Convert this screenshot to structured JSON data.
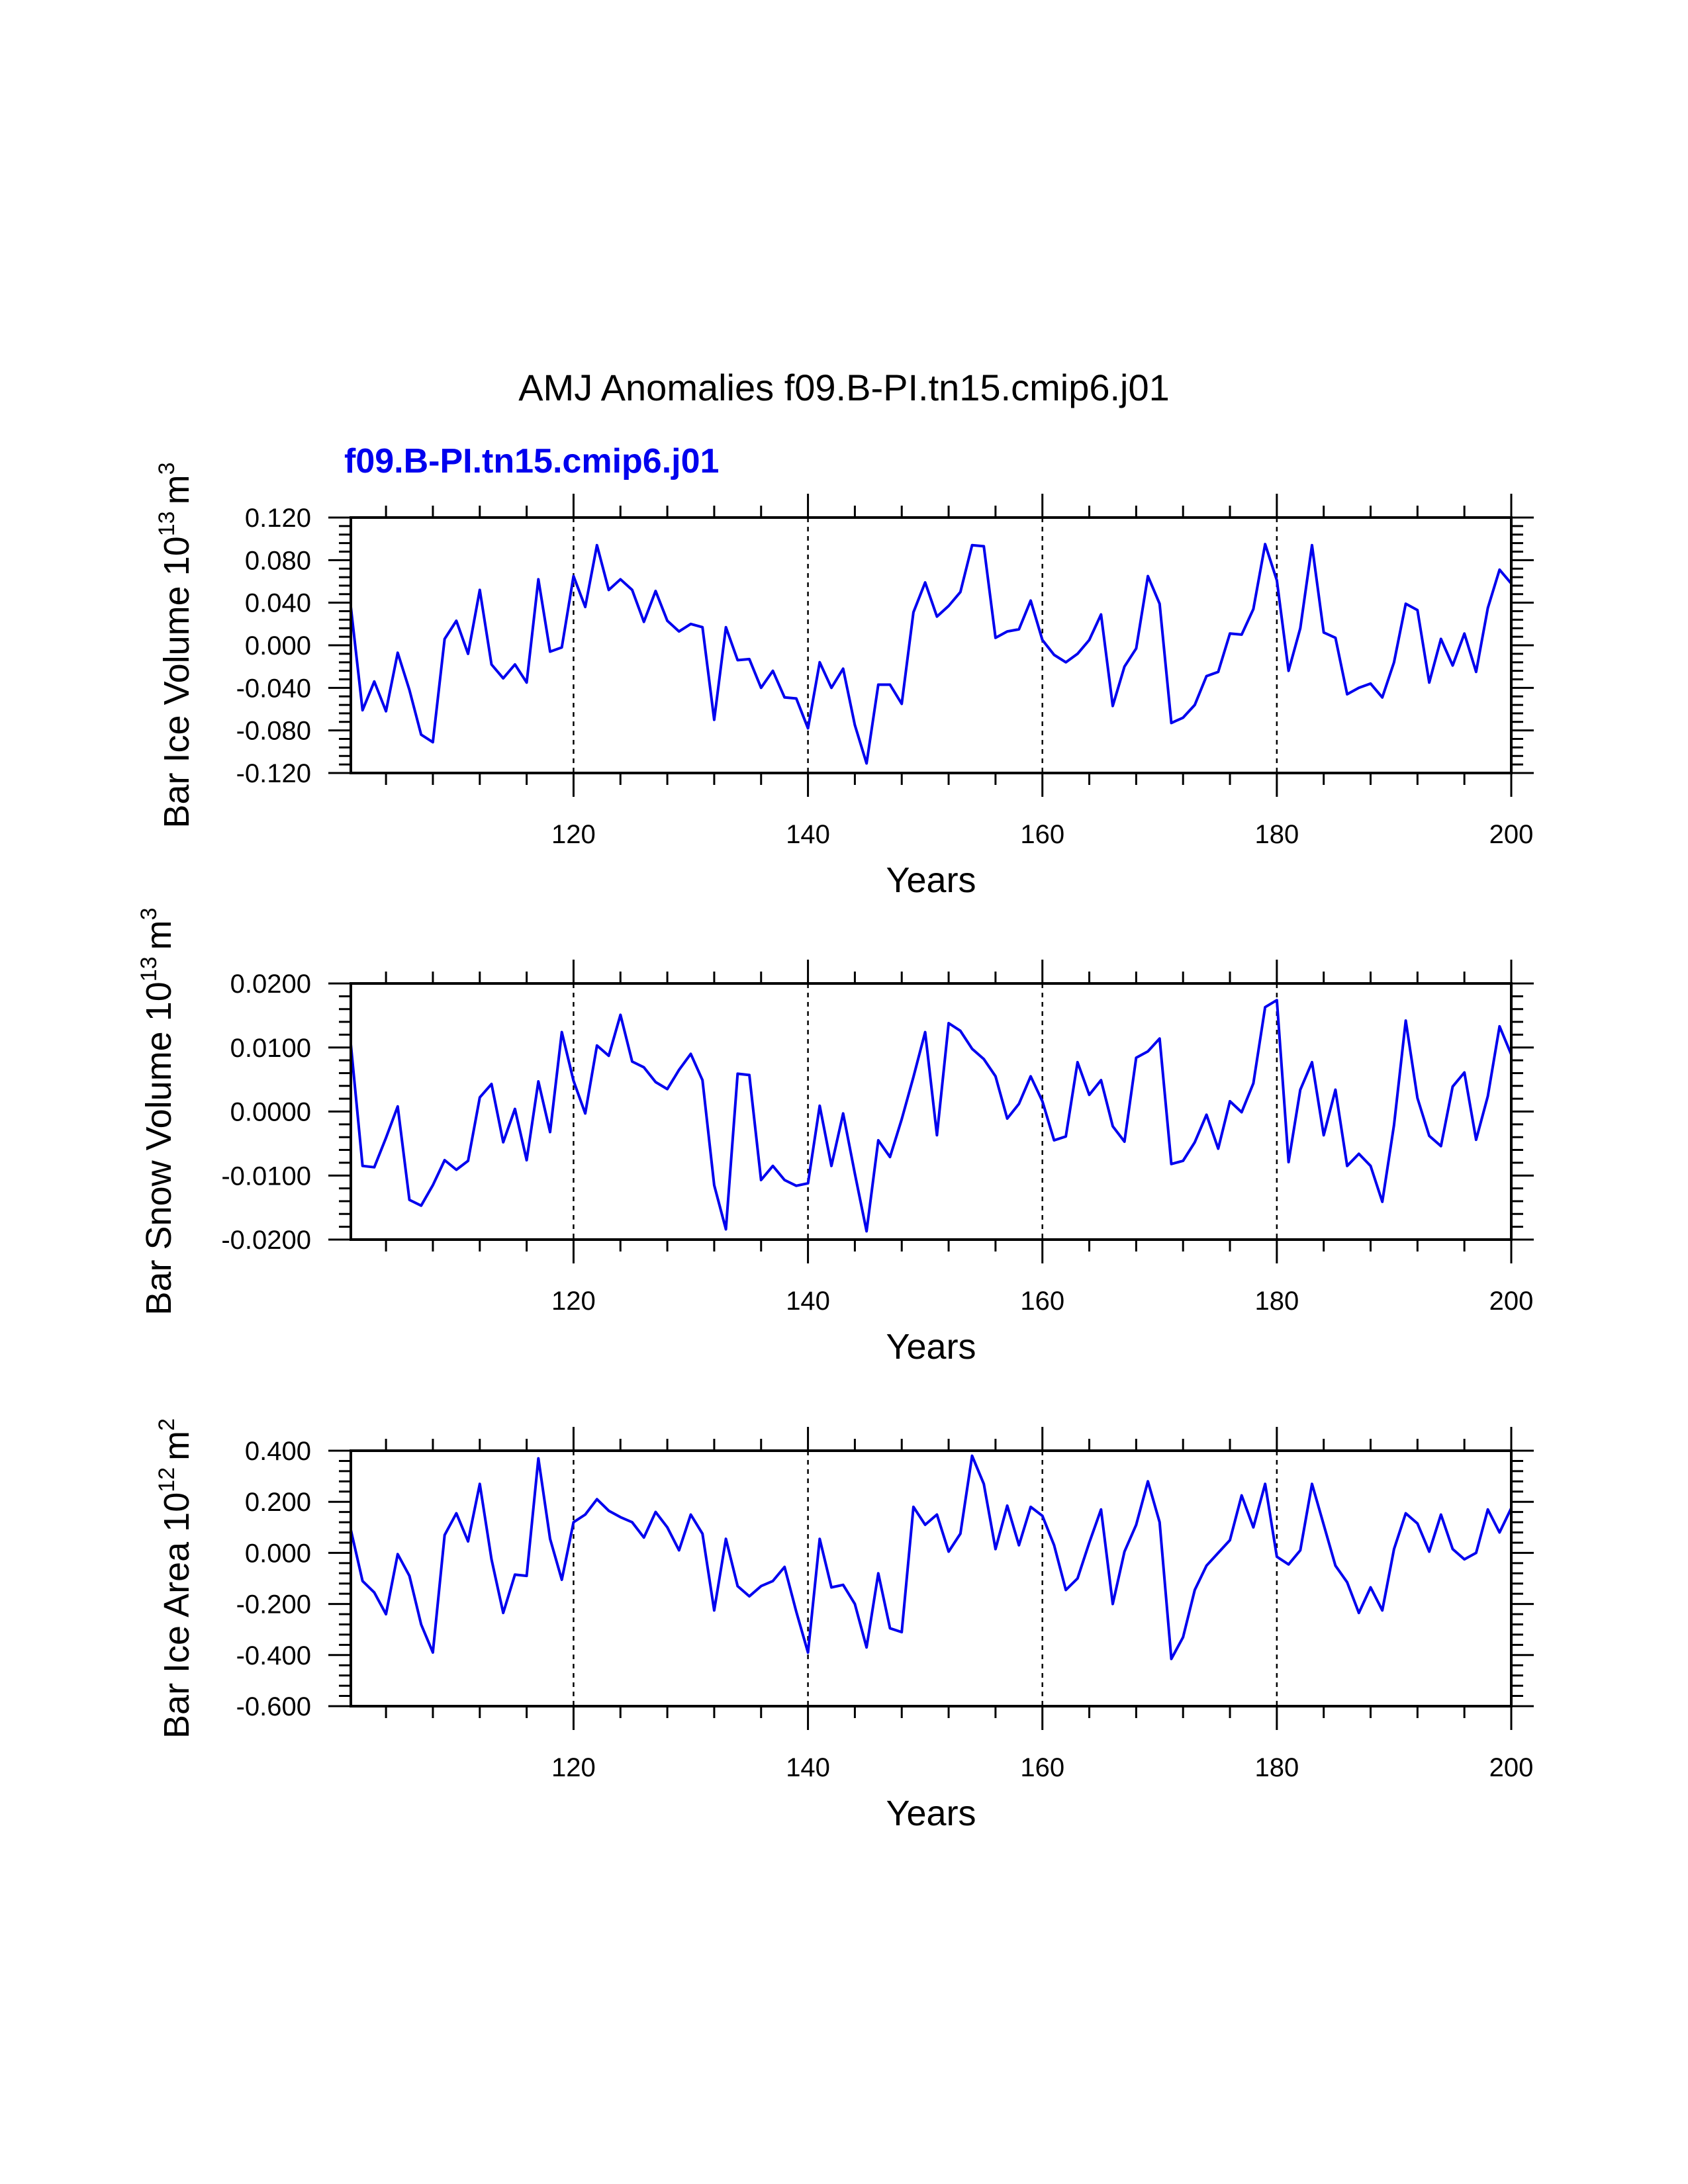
{
  "title": "AMJ Anomalies f09.B-PI.tn15.cmip6.j01",
  "run_label": "f09.B-PI.tn15.cmip6.j01",
  "colors": {
    "series": "#0000ee",
    "run_label": "#0000ee",
    "axes": "#000000"
  },
  "chart_data": [
    {
      "type": "line",
      "name": "Bar Ice Volume",
      "ylabel_main": "Bar Ice Volume 10",
      "ylabel_exp": "13",
      "ylabel_unit": "m",
      "ylabel_unit_exp": "3",
      "xlabel": "Years",
      "xlim": [
        101,
        200
      ],
      "ylim": [
        -0.12,
        0.12
      ],
      "xticks": [
        120,
        140,
        160,
        180,
        200
      ],
      "xtick_labels": [
        "120",
        "140",
        "160",
        "180",
        "200"
      ],
      "yticks": [
        -0.12,
        -0.08,
        -0.04,
        0.0,
        0.04,
        0.08,
        0.12
      ],
      "ytick_labels": [
        "-0.120",
        "-0.080",
        "-0.040",
        "0.000",
        "0.040",
        "0.080",
        "0.120"
      ],
      "grid_x": [
        120,
        140,
        160,
        180
      ],
      "x_start": 101,
      "values": [
        0.036,
        -0.061,
        -0.034,
        -0.062,
        -0.007,
        -0.042,
        -0.084,
        -0.091,
        0.006,
        0.023,
        -0.008,
        0.052,
        -0.018,
        -0.031,
        -0.018,
        -0.035,
        0.062,
        -0.006,
        -0.002,
        0.065,
        0.036,
        0.094,
        0.052,
        0.062,
        0.052,
        0.022,
        0.051,
        0.023,
        0.013,
        0.02,
        0.017,
        -0.07,
        0.017,
        -0.014,
        -0.013,
        -0.04,
        -0.024,
        -0.049,
        -0.05,
        -0.078,
        -0.016,
        -0.04,
        -0.022,
        -0.075,
        -0.111,
        -0.037,
        -0.037,
        -0.055,
        0.031,
        0.059,
        0.027,
        0.037,
        0.05,
        0.094,
        0.093,
        0.007,
        0.013,
        0.015,
        0.042,
        0.005,
        -0.009,
        -0.016,
        -0.008,
        0.005,
        0.029,
        -0.057,
        -0.02,
        -0.003,
        0.065,
        0.039,
        -0.073,
        -0.068,
        -0.056,
        -0.029,
        -0.025,
        0.011,
        0.01,
        0.034,
        0.095,
        0.061,
        -0.024,
        0.016,
        0.094,
        0.012,
        0.007,
        -0.046,
        -0.04,
        -0.036,
        -0.049,
        -0.016,
        0.039,
        0.033,
        -0.035,
        0.006,
        -0.019,
        0.011,
        -0.025,
        0.035,
        0.071,
        0.058
      ]
    },
    {
      "type": "line",
      "name": "Bar Snow Volume",
      "ylabel_main": "Bar Snow Volume 10",
      "ylabel_exp": "13",
      "ylabel_unit": "m",
      "ylabel_unit_exp": "3",
      "xlabel": "Years",
      "xlim": [
        101,
        200
      ],
      "ylim": [
        -0.02,
        0.02
      ],
      "xticks": [
        120,
        140,
        160,
        180,
        200
      ],
      "xtick_labels": [
        "120",
        "140",
        "160",
        "180",
        "200"
      ],
      "yticks": [
        -0.02,
        -0.01,
        0.0,
        0.01,
        0.02
      ],
      "ytick_labels": [
        "-0.0200",
        "-0.0100",
        "0.0000",
        "0.0100",
        "0.0200"
      ],
      "grid_x": [
        120,
        140,
        160,
        180
      ],
      "x_start": 101,
      "values": [
        0.0105,
        -0.0085,
        -0.0087,
        -0.0041,
        0.0008,
        -0.0138,
        -0.0147,
        -0.0115,
        -0.0076,
        -0.0091,
        -0.0077,
        0.0022,
        0.0043,
        -0.0048,
        0.0004,
        -0.0076,
        0.0047,
        -0.0032,
        0.0124,
        0.0048,
        -0.0003,
        0.0103,
        0.0087,
        0.0151,
        0.0078,
        0.0069,
        0.0046,
        0.0035,
        0.0065,
        0.009,
        0.0049,
        -0.0115,
        -0.0184,
        0.0059,
        0.0057,
        -0.0107,
        -0.0085,
        -0.0107,
        -0.0116,
        -0.0112,
        0.0009,
        -0.0085,
        -0.0003,
        -0.0097,
        -0.0187,
        -0.0045,
        -0.0071,
        -0.0012,
        0.0054,
        0.0124,
        -0.0037,
        0.0138,
        0.0126,
        0.0098,
        0.0082,
        0.0055,
        -0.0011,
        0.0012,
        0.0055,
        0.0016,
        -0.0045,
        -0.0039,
        0.0077,
        0.0026,
        0.0049,
        -0.0023,
        -0.0047,
        0.0084,
        0.0094,
        0.0114,
        -0.0082,
        -0.0077,
        -0.0048,
        -0.0005,
        -0.0058,
        0.0016,
        -0.0001,
        0.0044,
        0.0163,
        0.0174,
        -0.0079,
        0.0034,
        0.0077,
        -0.0037,
        0.0034,
        -0.0085,
        -0.0066,
        -0.0085,
        -0.0141,
        -0.0021,
        0.0142,
        0.0021,
        -0.0038,
        -0.0054,
        0.0039,
        0.0061,
        -0.0044,
        0.0024,
        0.0133,
        0.0089
      ]
    },
    {
      "type": "line",
      "name": "Bar Ice Area",
      "ylabel_main": "Bar Ice Area 10",
      "ylabel_exp": "12",
      "ylabel_unit": "m",
      "ylabel_unit_exp": "2",
      "xlabel": "Years",
      "xlim": [
        101,
        200
      ],
      "ylim": [
        -0.6,
        0.4
      ],
      "xticks": [
        120,
        140,
        160,
        180,
        200
      ],
      "xtick_labels": [
        "120",
        "140",
        "160",
        "180",
        "200"
      ],
      "yticks": [
        -0.6,
        -0.4,
        -0.2,
        0.0,
        0.2,
        0.4
      ],
      "ytick_labels": [
        "-0.600",
        "-0.400",
        "-0.200",
        "0.000",
        "0.200",
        "0.400"
      ],
      "grid_x": [
        120,
        140,
        160,
        180
      ],
      "x_start": 101,
      "values": [
        0.09,
        -0.11,
        -0.155,
        -0.24,
        -0.005,
        -0.09,
        -0.28,
        -0.39,
        0.07,
        0.155,
        0.045,
        0.27,
        -0.025,
        -0.235,
        -0.085,
        -0.09,
        0.37,
        0.055,
        -0.105,
        0.12,
        0.15,
        0.21,
        0.165,
        0.14,
        0.12,
        0.06,
        0.16,
        0.1,
        0.01,
        0.15,
        0.075,
        -0.225,
        0.055,
        -0.13,
        -0.17,
        -0.13,
        -0.11,
        -0.055,
        -0.23,
        -0.39,
        0.055,
        -0.135,
        -0.125,
        -0.2,
        -0.37,
        -0.08,
        -0.295,
        -0.31,
        0.18,
        0.11,
        0.15,
        0.005,
        0.075,
        0.38,
        0.27,
        0.015,
        0.185,
        0.03,
        0.18,
        0.145,
        0.03,
        -0.145,
        -0.1,
        0.04,
        0.17,
        -0.2,
        0.005,
        0.11,
        0.28,
        0.12,
        -0.415,
        -0.33,
        -0.145,
        -0.05,
        0.0,
        0.05,
        0.225,
        0.1,
        0.27,
        -0.015,
        -0.045,
        0.01,
        0.27,
        0.11,
        -0.05,
        -0.115,
        -0.235,
        -0.135,
        -0.225,
        0.015,
        0.155,
        0.115,
        0.005,
        0.15,
        0.015,
        -0.025,
        0.0,
        0.17,
        0.08,
        0.175
      ]
    }
  ]
}
